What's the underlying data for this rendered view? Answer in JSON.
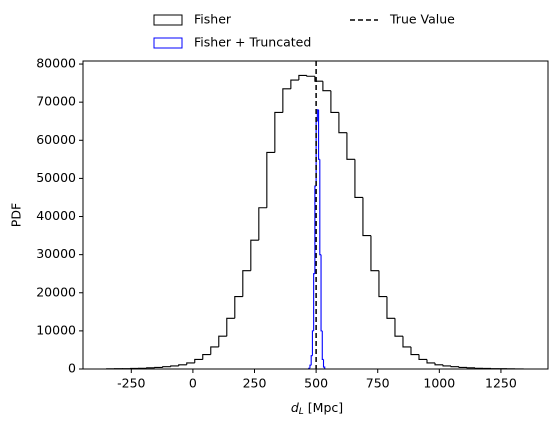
{
  "chart_data": {
    "type": "histogram",
    "x_label": {
      "symbol": "d",
      "subscript": "L",
      "unit": "[Mpc]"
    },
    "y_label": "PDF",
    "xlim": [
      -446,
      1441
    ],
    "ylim": [
      0,
      80800
    ],
    "xticks": [
      -250,
      0,
      250,
      500,
      750,
      1000,
      1250
    ],
    "yticks": [
      0,
      10000,
      20000,
      30000,
      40000,
      50000,
      60000,
      70000,
      80000
    ],
    "grid": false,
    "series": [
      {
        "name": "Fisher",
        "color": "#000000",
        "bins": [
          -350,
          -317.5,
          -285,
          -252.5,
          -220,
          -187.5,
          -155,
          -122.5,
          -90,
          -57.5,
          -25,
          7.5,
          40,
          72.5,
          105,
          137.5,
          170,
          202.5,
          235,
          267.5,
          300,
          332.5,
          365,
          397.5,
          430,
          462.5,
          495,
          527.5,
          560,
          592.5,
          625,
          657.5,
          690,
          722.5,
          755,
          787.5,
          820,
          852.5,
          885,
          917.5,
          950,
          982.5,
          1015,
          1047.5,
          1080,
          1112.5,
          1145,
          1177.5,
          1210,
          1242.5,
          1275,
          1307.5,
          1340
        ],
        "values": [
          50,
          80,
          100,
          150,
          200,
          300,
          400,
          600,
          800,
          1100,
          1600,
          2500,
          3800,
          5800,
          8600,
          13300,
          19000,
          25800,
          33800,
          42300,
          56800,
          67300,
          73500,
          75800,
          77000,
          76800,
          75500,
          73000,
          67300,
          62000,
          55000,
          45000,
          35000,
          25800,
          19000,
          13300,
          8600,
          5800,
          3800,
          2500,
          1600,
          1100,
          800,
          600,
          400,
          300,
          200,
          150,
          100,
          80,
          50,
          30
        ]
      },
      {
        "name": "Fisher + Truncated",
        "color": "#0000ff",
        "bins": [
          470,
          475,
          480,
          485,
          490,
          495,
          500,
          505,
          510,
          515,
          520,
          525,
          530,
          535
        ],
        "values": [
          200,
          1000,
          3500,
          10000,
          25000,
          48000,
          65000,
          68000,
          55000,
          30000,
          10000,
          2500,
          500
        ]
      }
    ],
    "reference_line": {
      "name": "True Value",
      "x": 500,
      "color": "#000000",
      "style": "dashed"
    },
    "legend": "top-outside"
  }
}
